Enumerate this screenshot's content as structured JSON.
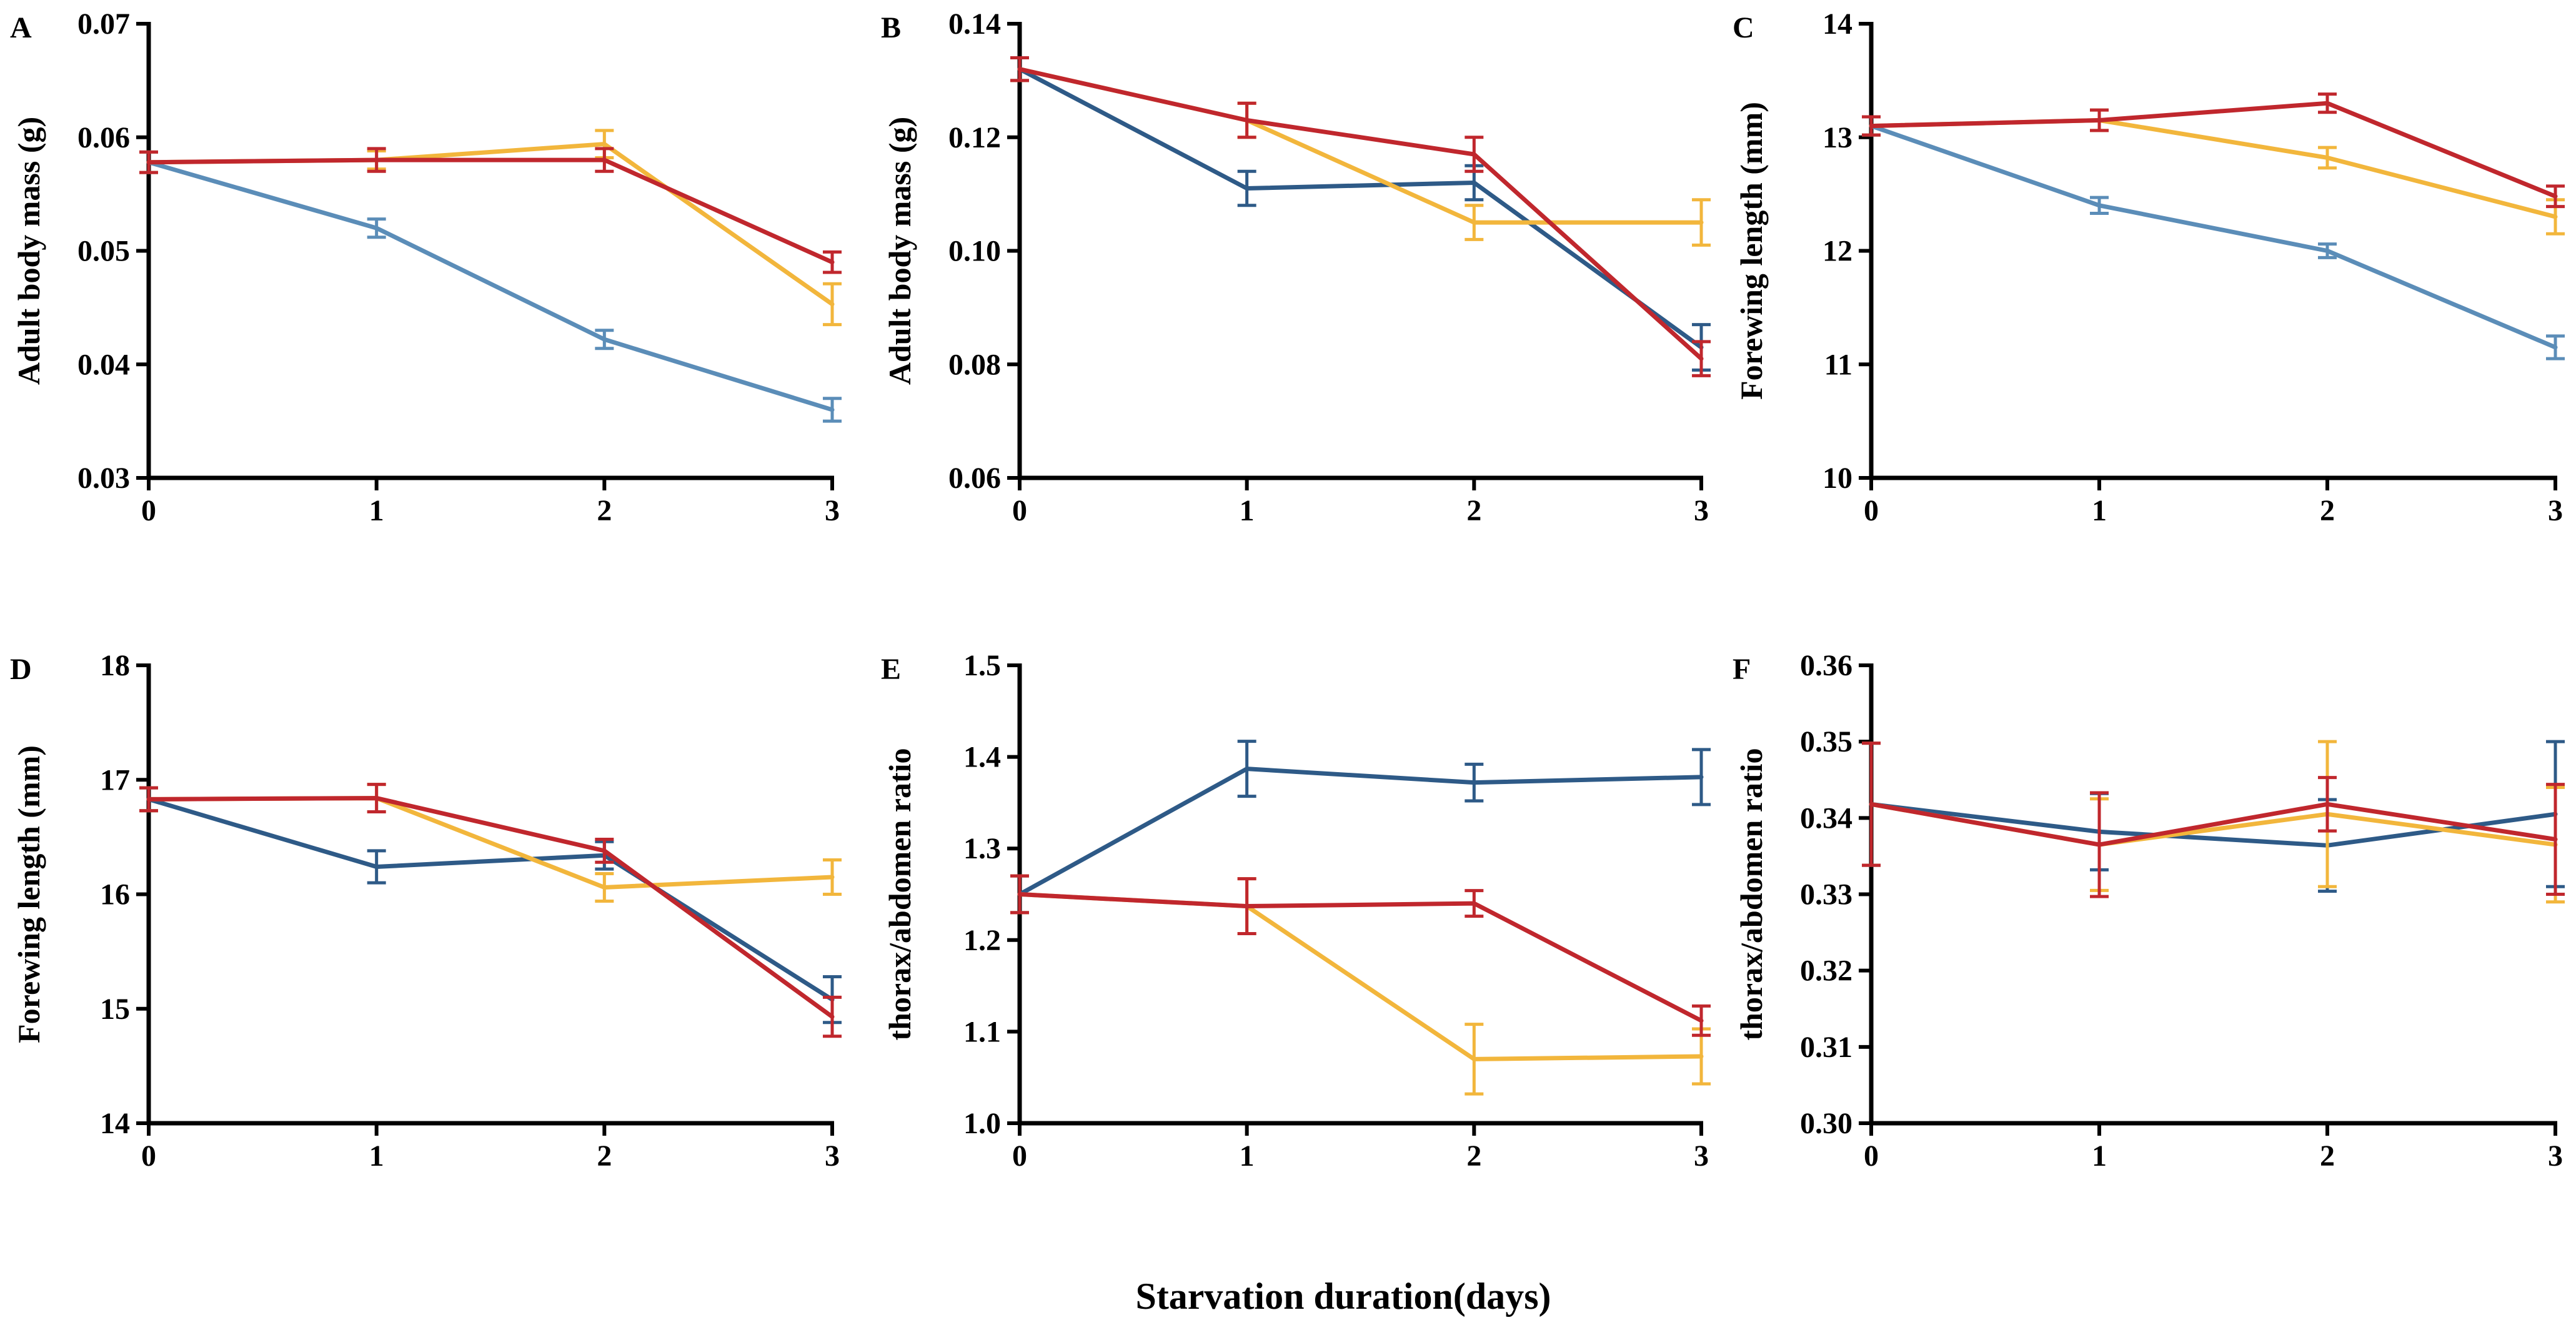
{
  "figure": {
    "shared_xlabel": "Starvation duration(days)",
    "series_colors": {
      "steel_blue": "#5b8db8",
      "dark_blue": "#2e5a87",
      "yellow": "#f2b63c",
      "red": "#c0272d"
    }
  },
  "chart_data": [
    {
      "panel": "A",
      "type": "line",
      "xlabel": "",
      "ylabel": "Adult body mass (g)",
      "x": [
        0,
        1,
        2,
        3
      ],
      "x_tick_labels": [
        "0",
        "1",
        "2",
        "3"
      ],
      "ylim": [
        0.03,
        0.07
      ],
      "y_ticks": [
        0.03,
        0.04,
        0.05,
        0.06,
        0.07
      ],
      "y_tick_labels": [
        "0.03",
        "0.04",
        "0.05",
        "0.06",
        "0.07"
      ],
      "series": [
        {
          "color": "#5b8db8",
          "values": [
            0.0578,
            0.052,
            0.0422,
            0.036
          ],
          "errors": [
            0.0009,
            0.0008,
            0.0008,
            0.001
          ]
        },
        {
          "color": "#f2b63c",
          "values": [
            0.0578,
            0.058,
            0.0594,
            0.0453
          ],
          "errors": [
            0.0009,
            0.0008,
            0.0012,
            0.0018
          ]
        },
        {
          "color": "#c0272d",
          "values": [
            0.0578,
            0.058,
            0.058,
            0.049
          ],
          "errors": [
            0.0009,
            0.001,
            0.001,
            0.0009
          ]
        }
      ]
    },
    {
      "panel": "B",
      "type": "line",
      "xlabel": "",
      "ylabel": "Adult body mass (g)",
      "x": [
        0,
        1,
        2,
        3
      ],
      "x_tick_labels": [
        "0",
        "1",
        "2",
        "3"
      ],
      "ylim": [
        0.06,
        0.14
      ],
      "y_ticks": [
        0.06,
        0.08,
        0.1,
        0.12,
        0.14
      ],
      "y_tick_labels": [
        "0.06",
        "0.08",
        "0.10",
        "0.12",
        "0.14"
      ],
      "series": [
        {
          "color": "#2e5a87",
          "values": [
            0.132,
            0.111,
            0.112,
            0.083
          ],
          "errors": [
            0.002,
            0.003,
            0.003,
            0.004
          ]
        },
        {
          "color": "#f2b63c",
          "values": [
            0.132,
            0.123,
            0.105,
            0.105
          ],
          "errors": [
            0.002,
            0.003,
            0.003,
            0.004
          ]
        },
        {
          "color": "#c0272d",
          "values": [
            0.132,
            0.123,
            0.117,
            0.081
          ],
          "errors": [
            0.002,
            0.003,
            0.003,
            0.003
          ]
        }
      ]
    },
    {
      "panel": "C",
      "type": "line",
      "xlabel": "",
      "ylabel": "Forewing length (mm)",
      "x": [
        0,
        1,
        2,
        3
      ],
      "x_tick_labels": [
        "0",
        "1",
        "2",
        "3"
      ],
      "ylim": [
        10,
        14
      ],
      "y_ticks": [
        10,
        11,
        12,
        13,
        14
      ],
      "y_tick_labels": [
        "10",
        "11",
        "12",
        "13",
        "14"
      ],
      "series": [
        {
          "color": "#5b8db8",
          "values": [
            13.1,
            12.4,
            12.0,
            11.15
          ],
          "errors": [
            0.08,
            0.07,
            0.06,
            0.1
          ]
        },
        {
          "color": "#f2b63c",
          "values": [
            13.1,
            13.15,
            12.82,
            12.3
          ],
          "errors": [
            0.08,
            0.09,
            0.09,
            0.15
          ]
        },
        {
          "color": "#c0272d",
          "values": [
            13.1,
            13.15,
            13.3,
            12.48
          ],
          "errors": [
            0.08,
            0.09,
            0.08,
            0.09
          ]
        }
      ]
    },
    {
      "panel": "D",
      "type": "line",
      "xlabel": "",
      "ylabel": "Forewing length (mm)",
      "x": [
        0,
        1,
        2,
        3
      ],
      "x_tick_labels": [
        "0",
        "1",
        "2",
        "3"
      ],
      "ylim": [
        14,
        18
      ],
      "y_ticks": [
        14,
        15,
        16,
        17,
        18
      ],
      "y_tick_labels": [
        "14",
        "15",
        "16",
        "17",
        "18"
      ],
      "series": [
        {
          "color": "#2e5a87",
          "values": [
            16.83,
            16.24,
            16.34,
            15.08
          ],
          "errors": [
            0.1,
            0.14,
            0.12,
            0.2
          ]
        },
        {
          "color": "#f2b63c",
          "values": [
            16.83,
            16.84,
            16.06,
            16.15
          ],
          "errors": [
            0.1,
            0.12,
            0.12,
            0.15
          ]
        },
        {
          "color": "#c0272d",
          "values": [
            16.83,
            16.84,
            16.38,
            14.93
          ],
          "errors": [
            0.1,
            0.12,
            0.1,
            0.17
          ]
        }
      ]
    },
    {
      "panel": "E",
      "type": "line",
      "xlabel": "",
      "ylabel": "thorax/abdomen ratio",
      "x": [
        0,
        1,
        2,
        3
      ],
      "x_tick_labels": [
        "0",
        "1",
        "2",
        "3"
      ],
      "ylim": [
        1.0,
        1.5
      ],
      "y_ticks": [
        1.0,
        1.1,
        1.2,
        1.3,
        1.4,
        1.5
      ],
      "y_tick_labels": [
        "1.0",
        "1.1",
        "1.2",
        "1.3",
        "1.4",
        "1.5"
      ],
      "series": [
        {
          "color": "#2e5a87",
          "values": [
            1.25,
            1.387,
            1.372,
            1.378
          ],
          "errors": [
            0.02,
            0.03,
            0.02,
            0.03
          ]
        },
        {
          "color": "#f2b63c",
          "values": [
            1.25,
            1.237,
            1.07,
            1.073
          ],
          "errors": [
            0.02,
            0.03,
            0.038,
            0.03
          ]
        },
        {
          "color": "#c0272d",
          "values": [
            1.25,
            1.237,
            1.24,
            1.112
          ],
          "errors": [
            0.02,
            0.03,
            0.014,
            0.016
          ]
        }
      ]
    },
    {
      "panel": "F",
      "type": "line",
      "xlabel": "",
      "ylabel": "thorax/abdomen ratio",
      "x": [
        0,
        1,
        2,
        3
      ],
      "x_tick_labels": [
        "0",
        "1",
        "2",
        "3"
      ],
      "ylim": [
        0.3,
        0.36
      ],
      "y_ticks": [
        0.3,
        0.31,
        0.32,
        0.33,
        0.34,
        0.35,
        0.36
      ],
      "y_tick_labels": [
        "0.30",
        "0.31",
        "0.32",
        "0.33",
        "0.34",
        "0.35",
        "0.36"
      ],
      "series": [
        {
          "color": "#2e5a87",
          "values": [
            0.3418,
            0.3382,
            0.3364,
            0.3405
          ],
          "errors": [
            0.008,
            0.005,
            0.006,
            0.0095
          ]
        },
        {
          "color": "#f2b63c",
          "values": [
            0.3418,
            0.3365,
            0.3405,
            0.3365
          ],
          "errors": [
            0.008,
            0.006,
            0.0095,
            0.0075
          ]
        },
        {
          "color": "#c0272d",
          "values": [
            0.3418,
            0.3365,
            0.3418,
            0.3372
          ],
          "errors": [
            0.008,
            0.0068,
            0.0035,
            0.0072
          ]
        }
      ]
    }
  ]
}
